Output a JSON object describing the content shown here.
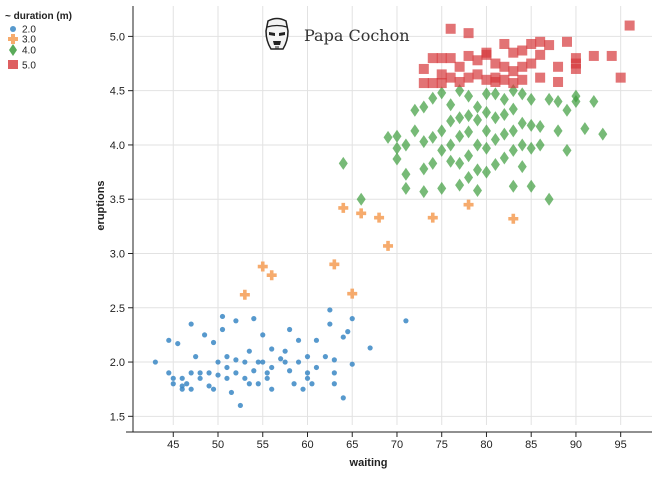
{
  "chart_data": {
    "type": "scatter",
    "brand": "Papa Cochon",
    "xlabel": "waiting",
    "ylabel": "eruptions",
    "xlim": [
      40.5,
      98.5
    ],
    "ylim": [
      1.42,
      5.28
    ],
    "xticks": [
      45,
      50,
      55,
      60,
      65,
      70,
      75,
      80,
      85,
      90,
      95
    ],
    "xtick_labels": [
      "45",
      "50",
      "55",
      "60",
      "65",
      "70",
      "75",
      "80",
      "85",
      "90",
      "95"
    ],
    "yticks": [
      1.5,
      2.0,
      2.5,
      3.0,
      3.5,
      4.0,
      4.5,
      5.0
    ],
    "ytick_labels": [
      "1.5",
      "2.0",
      "2.5",
      "3.0",
      "3.5",
      "4.0",
      "4.5",
      "5.0"
    ],
    "grid": true,
    "legend": {
      "title": "~ duration (m)",
      "position": "top-left",
      "entries": [
        {
          "label": "2.0",
          "marker": "circle",
          "color": "#3a87c4"
        },
        {
          "label": "3.0",
          "marker": "plus",
          "color": "#f5a25d"
        },
        {
          "label": "4.0",
          "marker": "diamond",
          "color": "#3d9c3d"
        },
        {
          "label": "5.0",
          "marker": "square",
          "color": "#d6373a"
        }
      ]
    },
    "series": [
      {
        "name": "2.0",
        "marker": "circle",
        "color": "#3a87c4",
        "points": [
          [
            43,
            2.0
          ],
          [
            44.5,
            2.2
          ],
          [
            44.5,
            1.9
          ],
          [
            45,
            1.85
          ],
          [
            45,
            1.8
          ],
          [
            45.5,
            2.17
          ],
          [
            46,
            1.78
          ],
          [
            46,
            1.75
          ],
          [
            46,
            1.85
          ],
          [
            46.5,
            1.8
          ],
          [
            47,
            2.35
          ],
          [
            47,
            1.9
          ],
          [
            47,
            1.75
          ],
          [
            47.5,
            2.05
          ],
          [
            48,
            1.9
          ],
          [
            48.5,
            2.25
          ],
          [
            48,
            1.85
          ],
          [
            49,
            1.9
          ],
          [
            49.5,
            2.18
          ],
          [
            49,
            1.78
          ],
          [
            49.5,
            1.75
          ],
          [
            50,
            2.0
          ],
          [
            50,
            1.88
          ],
          [
            50.5,
            2.42
          ],
          [
            50.5,
            2.3
          ],
          [
            51,
            2.05
          ],
          [
            51,
            1.95
          ],
          [
            51,
            1.85
          ],
          [
            51.5,
            1.72
          ],
          [
            52,
            1.9
          ],
          [
            52,
            2.02
          ],
          [
            52,
            2.38
          ],
          [
            52.5,
            1.6
          ],
          [
            53,
            2.0
          ],
          [
            53,
            1.85
          ],
          [
            53.5,
            1.8
          ],
          [
            53.5,
            2.1
          ],
          [
            54,
            2.4
          ],
          [
            54,
            1.92
          ],
          [
            54.5,
            2.0
          ],
          [
            54.5,
            1.8
          ],
          [
            55,
            2.25
          ],
          [
            55,
            2.0
          ],
          [
            55.5,
            1.9
          ],
          [
            55.5,
            1.85
          ],
          [
            56,
            2.12
          ],
          [
            56,
            1.95
          ],
          [
            56,
            1.75
          ],
          [
            57,
            2.03
          ],
          [
            57.5,
            2.1
          ],
          [
            57.5,
            2.0
          ],
          [
            58,
            1.92
          ],
          [
            58,
            2.3
          ],
          [
            58.5,
            1.8
          ],
          [
            59,
            2.2
          ],
          [
            59,
            2.0
          ],
          [
            59.5,
            1.75
          ],
          [
            60,
            2.05
          ],
          [
            60,
            1.9
          ],
          [
            60,
            1.85
          ],
          [
            60.5,
            1.8
          ],
          [
            61,
            2.2
          ],
          [
            61,
            1.95
          ],
          [
            62,
            2.05
          ],
          [
            62.5,
            2.35
          ],
          [
            62.5,
            2.48
          ],
          [
            63,
            1.9
          ],
          [
            63,
            1.8
          ],
          [
            63,
            2.02
          ],
          [
            64,
            1.67
          ],
          [
            64,
            2.23
          ],
          [
            64.5,
            2.28
          ],
          [
            65,
            1.98
          ],
          [
            65,
            2.4
          ],
          [
            67,
            2.13
          ],
          [
            71,
            2.38
          ]
        ]
      },
      {
        "name": "3.0",
        "marker": "plus",
        "color": "#f5a25d",
        "points": [
          [
            53,
            2.62
          ],
          [
            55,
            2.88
          ],
          [
            56,
            2.8
          ],
          [
            63,
            2.9
          ],
          [
            64,
            3.42
          ],
          [
            65,
            2.63
          ],
          [
            66,
            3.37
          ],
          [
            68,
            3.33
          ],
          [
            69,
            3.07
          ],
          [
            74,
            3.33
          ],
          [
            78,
            3.45
          ],
          [
            83,
            3.32
          ]
        ]
      },
      {
        "name": "4.0",
        "marker": "diamond",
        "color": "#3d9c3d",
        "points": [
          [
            64,
            3.83
          ],
          [
            66,
            3.5
          ],
          [
            69,
            4.07
          ],
          [
            70,
            3.87
          ],
          [
            70,
            4.08
          ],
          [
            70,
            3.97
          ],
          [
            71,
            4.0
          ],
          [
            71,
            3.73
          ],
          [
            71,
            3.6
          ],
          [
            72,
            4.32
          ],
          [
            72,
            4.13
          ],
          [
            73,
            4.03
          ],
          [
            73,
            3.78
          ],
          [
            73,
            3.57
          ],
          [
            73,
            4.35
          ],
          [
            74,
            4.43
          ],
          [
            74,
            4.07
          ],
          [
            74,
            3.83
          ],
          [
            75,
            4.48
          ],
          [
            75,
            4.13
          ],
          [
            75,
            3.95
          ],
          [
            75,
            3.6
          ],
          [
            76,
            4.37
          ],
          [
            76,
            4.0
          ],
          [
            76,
            3.85
          ],
          [
            76,
            4.22
          ],
          [
            77,
            4.5
          ],
          [
            77,
            4.25
          ],
          [
            77,
            4.08
          ],
          [
            77,
            3.83
          ],
          [
            77,
            3.63
          ],
          [
            78,
            4.45
          ],
          [
            78,
            4.27
          ],
          [
            78,
            4.12
          ],
          [
            78,
            3.9
          ],
          [
            78,
            3.7
          ],
          [
            79,
            4.35
          ],
          [
            79,
            4.23
          ],
          [
            79,
            4.0
          ],
          [
            79,
            3.77
          ],
          [
            79,
            3.58
          ],
          [
            80,
            4.47
          ],
          [
            80,
            4.3
          ],
          [
            80,
            4.13
          ],
          [
            80,
            3.97
          ],
          [
            80,
            3.75
          ],
          [
            81,
            4.47
          ],
          [
            81,
            4.25
          ],
          [
            81,
            4.05
          ],
          [
            81,
            3.82
          ],
          [
            82,
            4.42
          ],
          [
            82,
            4.28
          ],
          [
            82,
            4.1
          ],
          [
            82,
            3.88
          ],
          [
            83,
            4.5
          ],
          [
            83,
            4.33
          ],
          [
            83,
            4.13
          ],
          [
            83,
            3.95
          ],
          [
            83,
            3.62
          ],
          [
            84,
            4.47
          ],
          [
            84,
            4.2
          ],
          [
            84,
            4.0
          ],
          [
            84,
            3.8
          ],
          [
            85,
            4.42
          ],
          [
            85,
            4.18
          ],
          [
            85,
            3.97
          ],
          [
            85,
            3.62
          ],
          [
            86,
            4.17
          ],
          [
            86,
            4.0
          ],
          [
            87,
            4.42
          ],
          [
            87,
            3.5
          ],
          [
            88,
            4.4
          ],
          [
            88,
            4.13
          ],
          [
            89,
            4.32
          ],
          [
            89,
            3.95
          ],
          [
            90,
            4.45
          ],
          [
            90,
            4.4
          ],
          [
            91,
            4.15
          ],
          [
            92,
            4.4
          ],
          [
            93,
            4.1
          ]
        ]
      },
      {
        "name": "5.0",
        "marker": "square",
        "color": "#d6373a",
        "points": [
          [
            73,
            4.7
          ],
          [
            73,
            4.57
          ],
          [
            74,
            4.57
          ],
          [
            74,
            4.8
          ],
          [
            75,
            4.65
          ],
          [
            75,
            4.8
          ],
          [
            75,
            4.57
          ],
          [
            76,
            4.8
          ],
          [
            76,
            4.62
          ],
          [
            76,
            5.07
          ],
          [
            77,
            4.72
          ],
          [
            77,
            4.58
          ],
          [
            78,
            4.82
          ],
          [
            78,
            4.62
          ],
          [
            78,
            5.03
          ],
          [
            79,
            4.78
          ],
          [
            79,
            4.65
          ],
          [
            80,
            4.85
          ],
          [
            80,
            4.6
          ],
          [
            80,
            4.83
          ],
          [
            81,
            4.75
          ],
          [
            81,
            4.62
          ],
          [
            81,
            4.58
          ],
          [
            82,
            4.93
          ],
          [
            82,
            4.72
          ],
          [
            82,
            4.6
          ],
          [
            83,
            4.85
          ],
          [
            83,
            4.68
          ],
          [
            83,
            4.57
          ],
          [
            84,
            4.87
          ],
          [
            84,
            4.6
          ],
          [
            84,
            4.72
          ],
          [
            85,
            4.93
          ],
          [
            85,
            4.75
          ],
          [
            86,
            4.95
          ],
          [
            86,
            4.62
          ],
          [
            86,
            4.83
          ],
          [
            87,
            4.92
          ],
          [
            88,
            4.72
          ],
          [
            88,
            4.58
          ],
          [
            89,
            4.95
          ],
          [
            90,
            4.8
          ],
          [
            90,
            4.7
          ],
          [
            90,
            4.75
          ],
          [
            92,
            4.82
          ],
          [
            94,
            4.82
          ],
          [
            95,
            4.62
          ],
          [
            96,
            5.1
          ]
        ]
      }
    ]
  }
}
